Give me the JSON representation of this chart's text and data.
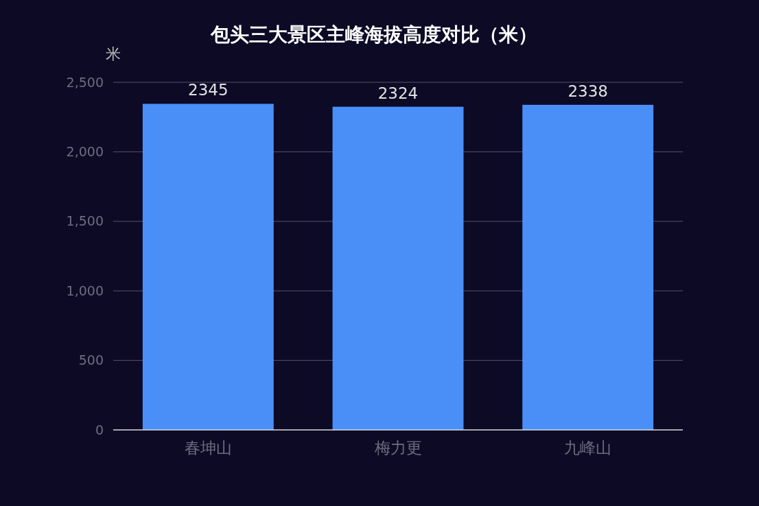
{
  "chart_data": {
    "type": "bar",
    "title": "包头三大景区主峰海拔高度对比（米）",
    "ylabel": "米",
    "categories": [
      "春坤山",
      "梅力更",
      "九峰山"
    ],
    "values": [
      2345,
      2324,
      2338
    ],
    "color": "#4a8ff8",
    "ylim": [
      0,
      2500
    ],
    "yticks": [
      0,
      500,
      {
        "value": 1000,
        "label": "1,000"
      },
      {
        "value": 1500,
        "label": "1,500"
      },
      {
        "value": 2000,
        "label": "2,000"
      },
      {
        "value": 2500,
        "label": "2,500"
      }
    ],
    "grid": "y",
    "data_labels": true
  }
}
